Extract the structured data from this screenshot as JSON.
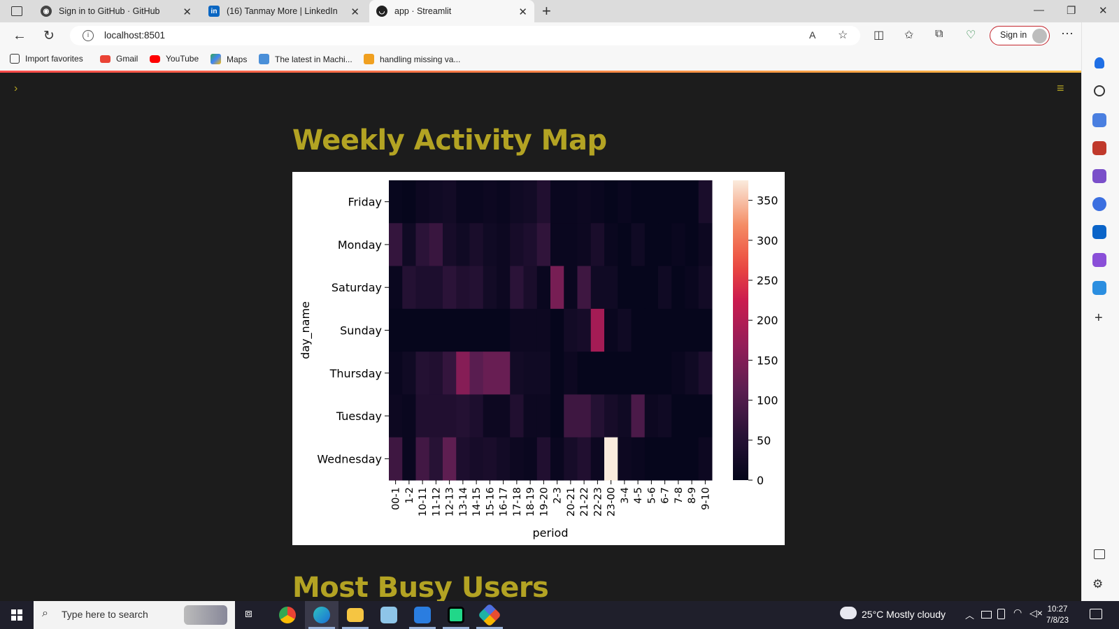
{
  "browser": {
    "tabs": [
      {
        "title": "Sign in to GitHub · GitHub",
        "icon": "github-icon"
      },
      {
        "title": "(16) Tanmay More | LinkedIn",
        "icon": "linkedin-icon"
      },
      {
        "title": "app · Streamlit",
        "icon": "streamlit-icon",
        "active": true
      }
    ],
    "url": "localhost:8501",
    "sign_in_label": "Sign in",
    "favorites": [
      {
        "label": "Import favorites",
        "icon": "import-icon"
      },
      {
        "label": "Gmail",
        "icon": "gmail-icon"
      },
      {
        "label": "YouTube",
        "icon": "youtube-icon"
      },
      {
        "label": "Maps",
        "icon": "maps-icon"
      },
      {
        "label": "The latest in Machi...",
        "icon": "news-icon"
      },
      {
        "label": "handling missing va...",
        "icon": "bookmark-icon"
      }
    ]
  },
  "page": {
    "heading": "Weekly Activity Map",
    "next_heading": "Most Busy Users"
  },
  "chart_data": {
    "type": "heatmap",
    "xlabel": "period",
    "ylabel": "day_name",
    "x": [
      "00-1",
      "1-2",
      "10-11",
      "11-12",
      "12-13",
      "13-14",
      "14-15",
      "15-16",
      "16-17",
      "17-18",
      "18-19",
      "19-20",
      "2-3",
      "20-21",
      "21-22",
      "22-23",
      "23-00",
      "3-4",
      "4-5",
      "5-6",
      "6-7",
      "7-8",
      "8-9",
      "9-10"
    ],
    "y": [
      "Friday",
      "Monday",
      "Saturday",
      "Sunday",
      "Thursday",
      "Tuesday",
      "Wednesday"
    ],
    "z": [
      [
        8,
        5,
        15,
        20,
        25,
        10,
        10,
        15,
        10,
        20,
        25,
        45,
        10,
        10,
        15,
        10,
        5,
        10,
        5,
        5,
        5,
        5,
        5,
        35
      ],
      [
        70,
        20,
        60,
        75,
        30,
        20,
        35,
        20,
        15,
        30,
        40,
        65,
        10,
        10,
        15,
        35,
        10,
        5,
        20,
        5,
        5,
        10,
        5,
        15
      ],
      [
        10,
        50,
        40,
        40,
        60,
        45,
        50,
        25,
        15,
        60,
        35,
        10,
        140,
        10,
        80,
        20,
        20,
        5,
        5,
        5,
        20,
        5,
        10,
        25
      ],
      [
        5,
        5,
        5,
        5,
        5,
        5,
        5,
        5,
        5,
        15,
        15,
        15,
        5,
        25,
        30,
        185,
        10,
        20,
        5,
        5,
        5,
        5,
        5,
        5
      ],
      [
        10,
        20,
        50,
        45,
        70,
        155,
        110,
        125,
        125,
        25,
        20,
        20,
        5,
        15,
        5,
        5,
        5,
        5,
        5,
        5,
        5,
        10,
        20,
        40
      ],
      [
        15,
        10,
        45,
        45,
        45,
        50,
        40,
        15,
        15,
        45,
        15,
        15,
        5,
        80,
        80,
        50,
        30,
        20,
        95,
        15,
        20,
        5,
        5,
        5
      ],
      [
        80,
        10,
        85,
        55,
        115,
        40,
        30,
        35,
        25,
        15,
        10,
        45,
        10,
        30,
        45,
        15,
        375,
        15,
        10,
        5,
        5,
        5,
        5,
        15
      ]
    ],
    "colorbar": {
      "min": 0,
      "max": 375,
      "ticks": [
        0,
        50,
        100,
        150,
        200,
        250,
        300,
        350
      ]
    }
  },
  "taskbar": {
    "search_placeholder": "Type here to search",
    "weather": "25°C  Mostly cloudy",
    "time": "10:27",
    "date": "7/8/23"
  }
}
